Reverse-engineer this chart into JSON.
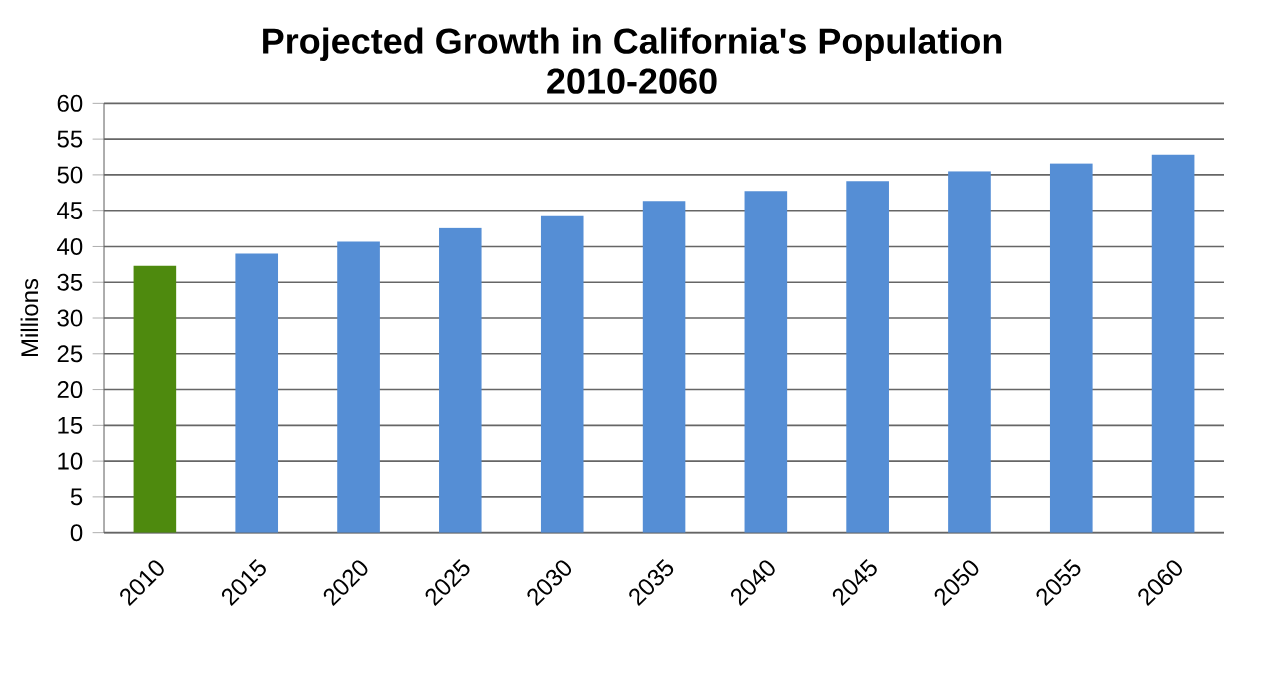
{
  "chart_data": {
    "type": "bar",
    "title": "Projected Growth in California's Population\n2010-2060",
    "ylabel": "Millions",
    "categories": [
      "2010",
      "2015",
      "2020",
      "2025",
      "2030",
      "2035",
      "2040",
      "2045",
      "2050",
      "2055",
      "2060"
    ],
    "values": [
      37.3,
      39.0,
      40.7,
      42.6,
      44.3,
      46.3,
      47.7,
      49.1,
      50.5,
      51.6,
      52.8
    ],
    "colors": [
      "#4e8a0e",
      "#558ed5",
      "#558ed5",
      "#558ed5",
      "#558ed5",
      "#558ed5",
      "#558ed5",
      "#558ed5",
      "#558ed5",
      "#558ed5",
      "#558ed5"
    ],
    "ylim": [
      0,
      60
    ],
    "yticks": [
      0,
      5,
      10,
      15,
      20,
      25,
      30,
      35,
      40,
      45,
      50,
      55,
      60
    ],
    "grid": "y"
  }
}
